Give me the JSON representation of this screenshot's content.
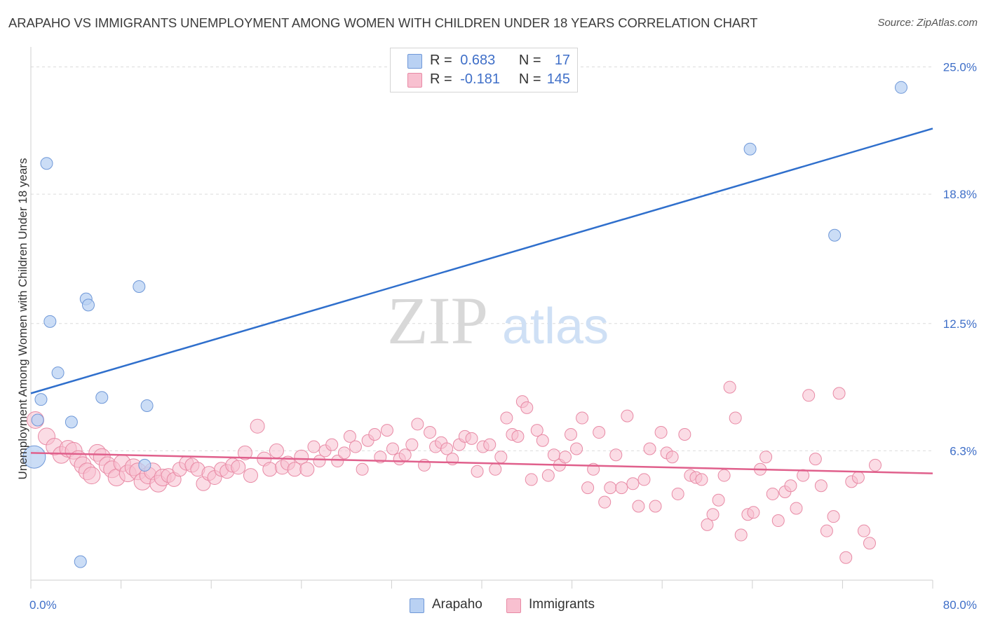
{
  "title": "ARAPAHO VS IMMIGRANTS UNEMPLOYMENT AMONG WOMEN WITH CHILDREN UNDER 18 YEARS CORRELATION CHART",
  "source": "Source: ZipAtlas.com",
  "watermark": {
    "zip": "ZIP",
    "atlas": "atlas"
  },
  "legend": {
    "r_label": "R =",
    "n_label": "N =",
    "rows": [
      {
        "r": "0.683",
        "n": "17"
      },
      {
        "r": "-0.181",
        "n": "145"
      }
    ]
  },
  "chart_data": {
    "type": "scatter",
    "title": "ARAPAHO VS IMMIGRANTS UNEMPLOYMENT AMONG WOMEN WITH CHILDREN UNDER 18 YEARS CORRELATION CHART",
    "xlabel": "",
    "ylabel": "Unemployment Among Women with Children Under 18 years",
    "xlim": [
      0,
      80
    ],
    "ylim": [
      0,
      25.7
    ],
    "x_tick_labels": [
      "0.0%",
      "80.0%"
    ],
    "y_tick_labels": [
      "25.0%",
      "18.8%",
      "12.5%",
      "6.3%"
    ],
    "y_ticks": [
      25.0,
      18.8,
      12.5,
      6.3
    ],
    "grid": true,
    "legend_position": "top-center",
    "colors": {
      "arapaho_fill": "#b9d1f3",
      "arapaho_stroke": "#6f98d8",
      "arapaho_line": "#2f6fcc",
      "immigrants_fill": "#f8c0d0",
      "immigrants_stroke": "#e88aa5",
      "immigrants_line": "#e0608c",
      "tick_label": "#3f6fc8"
    },
    "series": [
      {
        "name": "Arapaho",
        "r": 0.683,
        "n": 17,
        "trend": {
          "x": [
            0,
            80
          ],
          "y": [
            9.1,
            22.0
          ]
        },
        "points": [
          [
            0.3,
            6.0
          ],
          [
            0.6,
            7.8
          ],
          [
            0.9,
            8.8
          ],
          [
            1.4,
            20.3
          ],
          [
            1.7,
            12.6
          ],
          [
            2.4,
            10.1
          ],
          [
            3.6,
            7.7
          ],
          [
            4.4,
            0.9
          ],
          [
            4.9,
            13.7
          ],
          [
            5.1,
            13.4
          ],
          [
            6.3,
            8.9
          ],
          [
            9.6,
            14.3
          ],
          [
            10.1,
            5.6
          ],
          [
            10.3,
            8.5
          ],
          [
            63.8,
            21.0
          ],
          [
            71.3,
            16.8
          ],
          [
            77.2,
            24.0
          ]
        ]
      },
      {
        "name": "Immigrants",
        "r": -0.181,
        "n": 145,
        "trend": {
          "x": [
            0,
            80
          ],
          "y": [
            6.2,
            5.2
          ]
        },
        "points": [
          [
            0.4,
            7.8
          ],
          [
            1.4,
            7.0
          ],
          [
            2.1,
            6.5
          ],
          [
            2.7,
            6.1
          ],
          [
            3.3,
            6.4
          ],
          [
            3.8,
            6.3
          ],
          [
            4.2,
            5.9
          ],
          [
            4.6,
            5.6
          ],
          [
            5.0,
            5.3
          ],
          [
            5.4,
            5.1
          ],
          [
            5.9,
            6.2
          ],
          [
            6.3,
            6.0
          ],
          [
            6.8,
            5.6
          ],
          [
            7.2,
            5.4
          ],
          [
            7.6,
            5.0
          ],
          [
            8.1,
            5.7
          ],
          [
            8.6,
            5.2
          ],
          [
            9.1,
            5.5
          ],
          [
            9.5,
            5.3
          ],
          [
            9.9,
            4.8
          ],
          [
            10.4,
            5.1
          ],
          [
            10.8,
            5.3
          ],
          [
            11.3,
            4.7
          ],
          [
            11.7,
            5.0
          ],
          [
            12.2,
            5.1
          ],
          [
            12.7,
            4.9
          ],
          [
            13.2,
            5.4
          ],
          [
            13.8,
            5.7
          ],
          [
            14.3,
            5.6
          ],
          [
            14.8,
            5.4
          ],
          [
            15.3,
            4.7
          ],
          [
            15.8,
            5.2
          ],
          [
            16.3,
            5.0
          ],
          [
            16.9,
            5.4
          ],
          [
            17.4,
            5.3
          ],
          [
            17.9,
            5.6
          ],
          [
            18.4,
            5.5
          ],
          [
            19.0,
            6.2
          ],
          [
            19.5,
            5.1
          ],
          [
            20.1,
            7.5
          ],
          [
            20.7,
            5.9
          ],
          [
            21.2,
            5.4
          ],
          [
            21.8,
            6.3
          ],
          [
            22.3,
            5.5
          ],
          [
            22.8,
            5.7
          ],
          [
            23.4,
            5.4
          ],
          [
            24.0,
            6.0
          ],
          [
            24.5,
            5.4
          ],
          [
            25.1,
            6.5
          ],
          [
            25.6,
            5.8
          ],
          [
            26.1,
            6.3
          ],
          [
            26.7,
            6.6
          ],
          [
            27.2,
            5.8
          ],
          [
            27.8,
            6.2
          ],
          [
            28.3,
            7.0
          ],
          [
            28.8,
            6.5
          ],
          [
            29.4,
            5.4
          ],
          [
            29.9,
            6.8
          ],
          [
            30.5,
            7.1
          ],
          [
            31.0,
            6.0
          ],
          [
            31.6,
            7.3
          ],
          [
            32.1,
            6.4
          ],
          [
            32.7,
            5.9
          ],
          [
            33.2,
            6.1
          ],
          [
            33.8,
            6.6
          ],
          [
            34.3,
            7.6
          ],
          [
            34.9,
            5.6
          ],
          [
            35.4,
            7.2
          ],
          [
            35.9,
            6.5
          ],
          [
            36.4,
            6.7
          ],
          [
            36.9,
            6.4
          ],
          [
            37.4,
            5.9
          ],
          [
            38.0,
            6.6
          ],
          [
            38.5,
            7.0
          ],
          [
            39.1,
            6.9
          ],
          [
            39.6,
            5.3
          ],
          [
            40.1,
            6.5
          ],
          [
            40.7,
            6.6
          ],
          [
            41.2,
            5.4
          ],
          [
            41.7,
            6.0
          ],
          [
            42.2,
            7.9
          ],
          [
            42.7,
            7.1
          ],
          [
            43.2,
            7.0
          ],
          [
            43.6,
            8.7
          ],
          [
            44.0,
            8.4
          ],
          [
            44.4,
            4.9
          ],
          [
            44.9,
            7.3
          ],
          [
            45.4,
            6.8
          ],
          [
            45.9,
            5.1
          ],
          [
            46.4,
            6.1
          ],
          [
            46.9,
            5.6
          ],
          [
            47.4,
            6.0
          ],
          [
            47.9,
            7.1
          ],
          [
            48.4,
            6.4
          ],
          [
            48.9,
            7.9
          ],
          [
            49.4,
            4.5
          ],
          [
            49.9,
            5.4
          ],
          [
            50.4,
            7.2
          ],
          [
            50.9,
            3.8
          ],
          [
            51.4,
            4.5
          ],
          [
            51.9,
            6.1
          ],
          [
            52.4,
            4.5
          ],
          [
            52.9,
            8.0
          ],
          [
            53.4,
            4.7
          ],
          [
            53.9,
            3.6
          ],
          [
            54.4,
            4.9
          ],
          [
            54.9,
            6.4
          ],
          [
            55.4,
            3.6
          ],
          [
            55.9,
            7.2
          ],
          [
            56.4,
            6.2
          ],
          [
            56.9,
            6.0
          ],
          [
            57.4,
            4.2
          ],
          [
            58.0,
            7.1
          ],
          [
            58.5,
            5.1
          ],
          [
            59.0,
            5.0
          ],
          [
            59.5,
            4.9
          ],
          [
            60.0,
            2.7
          ],
          [
            60.5,
            3.2
          ],
          [
            61.0,
            3.9
          ],
          [
            61.5,
            5.1
          ],
          [
            62.0,
            9.4
          ],
          [
            62.5,
            7.9
          ],
          [
            63.0,
            2.2
          ],
          [
            63.6,
            3.2
          ],
          [
            64.1,
            3.3
          ],
          [
            64.7,
            5.4
          ],
          [
            65.2,
            6.0
          ],
          [
            65.8,
            4.2
          ],
          [
            66.3,
            2.9
          ],
          [
            66.9,
            4.3
          ],
          [
            67.4,
            4.6
          ],
          [
            67.9,
            3.5
          ],
          [
            68.5,
            5.1
          ],
          [
            69.0,
            9.0
          ],
          [
            69.6,
            5.9
          ],
          [
            70.1,
            4.6
          ],
          [
            70.6,
            2.4
          ],
          [
            71.2,
            3.1
          ],
          [
            71.7,
            9.1
          ],
          [
            72.3,
            1.1
          ],
          [
            72.8,
            4.8
          ],
          [
            73.4,
            5.0
          ],
          [
            73.9,
            2.4
          ],
          [
            74.4,
            1.8
          ],
          [
            74.9,
            5.6
          ]
        ]
      }
    ]
  }
}
